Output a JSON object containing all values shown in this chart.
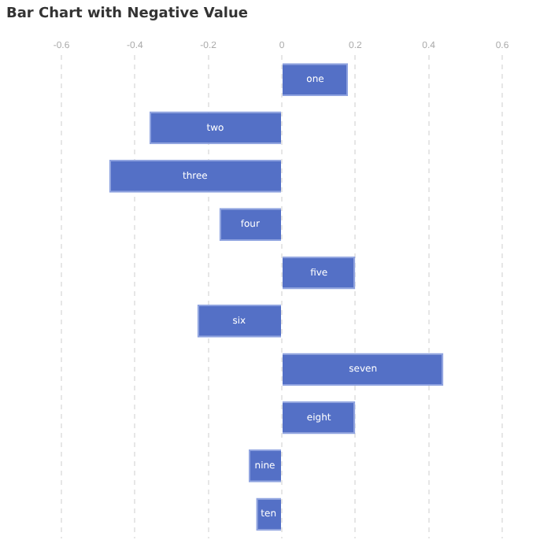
{
  "chart_data": {
    "type": "bar",
    "orientation": "horizontal",
    "title": "Bar Chart with Negative Value",
    "categories": [
      "one",
      "two",
      "three",
      "four",
      "five",
      "six",
      "seven",
      "eight",
      "nine",
      "ten"
    ],
    "values": [
      0.18,
      -0.36,
      -0.47,
      -0.17,
      0.2,
      -0.23,
      0.44,
      0.2,
      -0.09,
      -0.07
    ],
    "color": "#5470c6",
    "xlim": [
      -0.6,
      0.6
    ],
    "xticks": [
      -0.6,
      -0.4,
      -0.2,
      0,
      0.2,
      0.4,
      0.6
    ],
    "grid": "x",
    "tick_labels": "x",
    "legend": false
  }
}
